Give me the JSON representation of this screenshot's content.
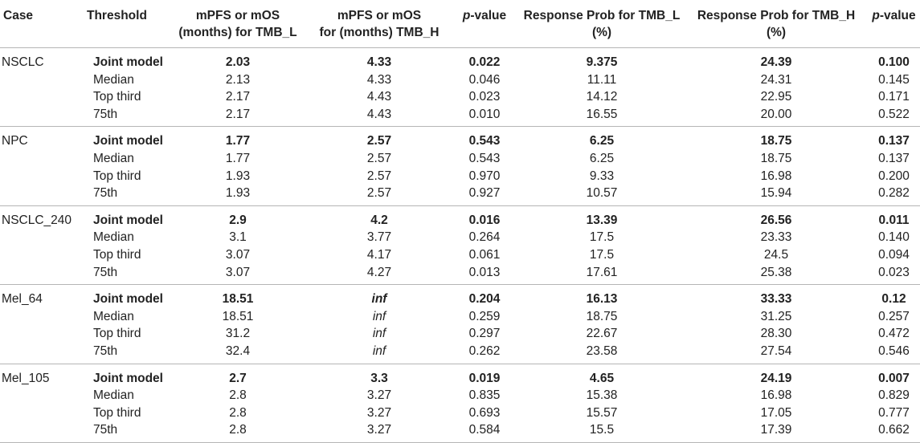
{
  "headers": {
    "case": "Case",
    "threshold": "Threshold",
    "mpfs_l_line1": "mPFS or mOS",
    "mpfs_l_line2": "(months) for TMB_L",
    "mpfs_h_line1": "mPFS or mOS",
    "mpfs_h_line2": "for (months) TMB_H",
    "pvalue_1_p": "p",
    "pvalue_1_rest": "-value",
    "resp_l_line1": "Response Prob for TMB_L",
    "resp_l_line2": "(%)",
    "resp_h_line1": "Response Prob for TMB_H",
    "resp_h_line2": "(%)",
    "pvalue_2_p": "p",
    "pvalue_2_rest": "-value"
  },
  "groups": [
    {
      "case": "NSCLC",
      "rows": [
        {
          "threshold": "Joint model",
          "mpfs_l": "2.03",
          "mpfs_h": "4.33",
          "p1": "0.022",
          "resp_l": "9.375",
          "resp_h": "24.39",
          "p2": "0.100"
        },
        {
          "threshold": "Median",
          "mpfs_l": "2.13",
          "mpfs_h": "4.33",
          "p1": "0.046",
          "resp_l": "11.11",
          "resp_h": "24.31",
          "p2": "0.145"
        },
        {
          "threshold": "Top third",
          "mpfs_l": "2.17",
          "mpfs_h": "4.43",
          "p1": "0.023",
          "resp_l": "14.12",
          "resp_h": "22.95",
          "p2": "0.171"
        },
        {
          "threshold": "75th",
          "mpfs_l": "2.17",
          "mpfs_h": "4.43",
          "p1": "0.010",
          "resp_l": "16.55",
          "resp_h": "20.00",
          "p2": "0.522"
        }
      ]
    },
    {
      "case": "NPC",
      "rows": [
        {
          "threshold": "Joint model",
          "mpfs_l": "1.77",
          "mpfs_h": "2.57",
          "p1": "0.543",
          "resp_l": "6.25",
          "resp_h": "18.75",
          "p2": "0.137"
        },
        {
          "threshold": "Median",
          "mpfs_l": "1.77",
          "mpfs_h": "2.57",
          "p1": "0.543",
          "resp_l": "6.25",
          "resp_h": "18.75",
          "p2": "0.137"
        },
        {
          "threshold": "Top third",
          "mpfs_l": "1.93",
          "mpfs_h": "2.57",
          "p1": "0.970",
          "resp_l": "9.33",
          "resp_h": "16.98",
          "p2": "0.200"
        },
        {
          "threshold": "75th",
          "mpfs_l": "1.93",
          "mpfs_h": "2.57",
          "p1": "0.927",
          "resp_l": "10.57",
          "resp_h": "15.94",
          "p2": "0.282"
        }
      ]
    },
    {
      "case": "NSCLC_240",
      "rows": [
        {
          "threshold": "Joint model",
          "mpfs_l": "2.9",
          "mpfs_h": "4.2",
          "p1": "0.016",
          "resp_l": "13.39",
          "resp_h": "26.56",
          "p2": "0.011"
        },
        {
          "threshold": "Median",
          "mpfs_l": "3.1",
          "mpfs_h": "3.77",
          "p1": "0.264",
          "resp_l": "17.5",
          "resp_h": "23.33",
          "p2": "0.140"
        },
        {
          "threshold": "Top third",
          "mpfs_l": "3.07",
          "mpfs_h": "4.17",
          "p1": "0.061",
          "resp_l": "17.5",
          "resp_h": "24.5",
          "p2": "0.094"
        },
        {
          "threshold": "75th",
          "mpfs_l": "3.07",
          "mpfs_h": "4.27",
          "p1": "0.013",
          "resp_l": "17.61",
          "resp_h": "25.38",
          "p2": "0.023"
        }
      ]
    },
    {
      "case": "Mel_64",
      "rows": [
        {
          "threshold": "Joint model",
          "mpfs_l": "18.51",
          "mpfs_h": "inf",
          "p1": "0.204",
          "resp_l": "16.13",
          "resp_h": "33.33",
          "p2": "0.12"
        },
        {
          "threshold": "Median",
          "mpfs_l": "18.51",
          "mpfs_h": "inf",
          "p1": "0.259",
          "resp_l": "18.75",
          "resp_h": "31.25",
          "p2": "0.257"
        },
        {
          "threshold": "Top third",
          "mpfs_l": "31.2",
          "mpfs_h": "inf",
          "p1": "0.297",
          "resp_l": "22.67",
          "resp_h": "28.30",
          "p2": "0.472"
        },
        {
          "threshold": "75th",
          "mpfs_l": "32.4",
          "mpfs_h": "inf",
          "p1": "0.262",
          "resp_l": "23.58",
          "resp_h": "27.54",
          "p2": "0.546"
        }
      ]
    },
    {
      "case": "Mel_105",
      "rows": [
        {
          "threshold": "Joint model",
          "mpfs_l": "2.7",
          "mpfs_h": "3.3",
          "p1": "0.019",
          "resp_l": "4.65",
          "resp_h": "24.19",
          "p2": "0.007"
        },
        {
          "threshold": "Median",
          "mpfs_l": "2.8",
          "mpfs_h": "3.27",
          "p1": "0.835",
          "resp_l": "15.38",
          "resp_h": "16.98",
          "p2": "0.829"
        },
        {
          "threshold": "Top third",
          "mpfs_l": "2.8",
          "mpfs_h": "3.27",
          "p1": "0.693",
          "resp_l": "15.57",
          "resp_h": "17.05",
          "p2": "0.777"
        },
        {
          "threshold": "75th",
          "mpfs_l": "2.8",
          "mpfs_h": "3.27",
          "p1": "0.584",
          "resp_l": "15.5",
          "resp_h": "17.39",
          "p2": "0.662"
        }
      ]
    }
  ]
}
